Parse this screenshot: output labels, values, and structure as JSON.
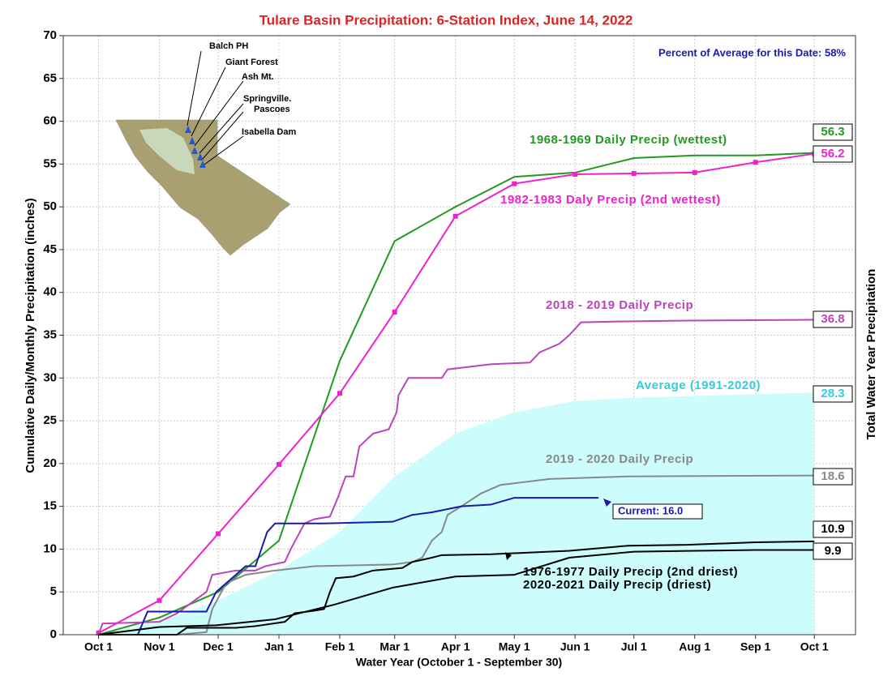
{
  "chart_data": {
    "type": "line",
    "title": "Tulare Basin Precipitation: 6-Station Index, June 14, 2022",
    "subtitle": "Percent of Average for this Date: 58%",
    "xlabel": "Water Year (October 1 - September 30)",
    "ylabel": "Cumulative Daily/Monthly Precipitation (inches)",
    "y2label": "Total Water Year Precipitation",
    "xlim": [
      -18,
      386
    ],
    "ylim": [
      0,
      70
    ],
    "xticks": [
      {
        "value": 0,
        "label": "Oct 1"
      },
      {
        "value": 31,
        "label": "Nov 1"
      },
      {
        "value": 61,
        "label": "Dec 1"
      },
      {
        "value": 92,
        "label": "Jan 1"
      },
      {
        "value": 123,
        "label": "Feb 1"
      },
      {
        "value": 151,
        "label": "Mar 1"
      },
      {
        "value": 182,
        "label": "Apr 1"
      },
      {
        "value": 212,
        "label": "May 1"
      },
      {
        "value": 243,
        "label": "Jun 1"
      },
      {
        "value": 273,
        "label": "Jul 1"
      },
      {
        "value": 304,
        "label": "Aug 1"
      },
      {
        "value": 335,
        "label": "Sep 1"
      },
      {
        "value": 365,
        "label": "Oct 1"
      }
    ],
    "yticks": [
      0,
      5,
      10,
      15,
      20,
      25,
      30,
      35,
      40,
      45,
      50,
      55,
      60,
      65,
      70
    ],
    "grid": true,
    "map_stations": [
      "Balch PH",
      "Giant Forest",
      "Ash Mt.",
      "Springville.",
      "Pascoes",
      "Isabella Dam"
    ],
    "series": [
      {
        "name": "Average (1991-2020)",
        "color": "#33ccdd",
        "fill": "#ccfcfc",
        "area": true,
        "total": 28.3,
        "x": [
          0,
          31,
          61,
          92,
          123,
          151,
          182,
          212,
          243,
          273,
          304,
          335,
          365
        ],
        "values": [
          0,
          1.5,
          4,
          7.5,
          12,
          18.5,
          23.5,
          26,
          27.3,
          27.7,
          27.9,
          28.1,
          28.3
        ]
      },
      {
        "name": "1968-1969 Daily Precip (wettest)",
        "color": "#229922",
        "total": 56.3,
        "x": [
          0,
          31,
          61,
          92,
          123,
          151,
          182,
          212,
          243,
          273,
          304,
          335,
          365
        ],
        "values": [
          0,
          2,
          5,
          11,
          32,
          46,
          50,
          53.5,
          54,
          55.7,
          56,
          56,
          56.3
        ]
      },
      {
        "name": "1982-1983 Daly Precip (2nd wettest)",
        "color": "#ee22cc",
        "markers": true,
        "total": 56.2,
        "x": [
          0,
          31,
          61,
          92,
          123,
          151,
          182,
          212,
          243,
          273,
          304,
          335,
          365
        ],
        "values": [
          0.2,
          4,
          11.8,
          19.9,
          28.2,
          37.7,
          48.9,
          52.7,
          53.8,
          53.9,
          54,
          55.2,
          56.2
        ]
      },
      {
        "name": "2018 - 2019 Daily Precip",
        "color": "#bb44bb",
        "total": 36.8,
        "x": [
          0,
          2,
          31,
          40,
          55,
          58,
          70,
          80,
          85,
          95,
          98,
          105,
          110,
          118,
          122,
          126,
          130,
          133,
          140,
          148,
          152,
          153,
          158,
          175,
          178,
          200,
          220,
          225,
          235,
          240,
          246,
          265,
          300,
          365
        ],
        "values": [
          0,
          1.3,
          1.5,
          2.5,
          5,
          7,
          7.5,
          7.5,
          8,
          8.5,
          10,
          13,
          13.5,
          13.8,
          16,
          18.5,
          18.5,
          22,
          23.5,
          24,
          26,
          28,
          30,
          30,
          31,
          31.6,
          31.8,
          33,
          34,
          35,
          36.5,
          36.6,
          36.7,
          36.8
        ]
      },
      {
        "name": "2019 - 2020 Daily Precip",
        "color": "#888888",
        "total": 18.6,
        "x": [
          0,
          40,
          55,
          58,
          65,
          75,
          90,
          110,
          150,
          160,
          165,
          170,
          175,
          178,
          185,
          195,
          205,
          230,
          270,
          365
        ],
        "values": [
          0,
          0,
          0.3,
          3,
          6,
          7,
          7.5,
          8,
          8.2,
          8.5,
          9,
          11,
          12,
          14,
          15,
          16.5,
          17.5,
          18.2,
          18.5,
          18.6
        ]
      },
      {
        "name": "Current: 16.0",
        "color": "#1a1aaa",
        "x": [
          0,
          20,
          25,
          55,
          60,
          75,
          80,
          86,
          90,
          115,
          150,
          160,
          170,
          185,
          200,
          212,
          255
        ],
        "values": [
          0,
          0,
          2.7,
          2.7,
          5,
          8,
          8,
          12,
          13,
          13,
          13.2,
          14,
          14.3,
          15,
          15.2,
          16,
          16
        ]
      },
      {
        "name": "1976-1977 Daily Precip (2nd driest)",
        "color": "#000000",
        "total": 10.9,
        "x": [
          0,
          40,
          45,
          70,
          80,
          95,
          100,
          110,
          115,
          118,
          121,
          130,
          140,
          155,
          160,
          170,
          175,
          200,
          240,
          270,
          300,
          335,
          365
        ],
        "values": [
          0,
          0,
          0.8,
          0.8,
          1,
          1.5,
          2.5,
          2.8,
          3,
          5,
          6.6,
          6.8,
          7.5,
          7.8,
          8.5,
          9,
          9.3,
          9.4,
          9.8,
          10.4,
          10.5,
          10.8,
          10.9
        ]
      },
      {
        "name": "2020-2021 Daily Precip (driest)",
        "color": "#000000",
        "total": 9.9,
        "x": [
          0,
          31,
          60,
          90,
          120,
          150,
          182,
          212,
          240,
          273,
          304,
          335,
          365
        ],
        "values": [
          0,
          0.9,
          1.1,
          1.8,
          3.5,
          5.5,
          6.8,
          7,
          9,
          9.7,
          9.8,
          9.9,
          9.9
        ]
      }
    ]
  }
}
